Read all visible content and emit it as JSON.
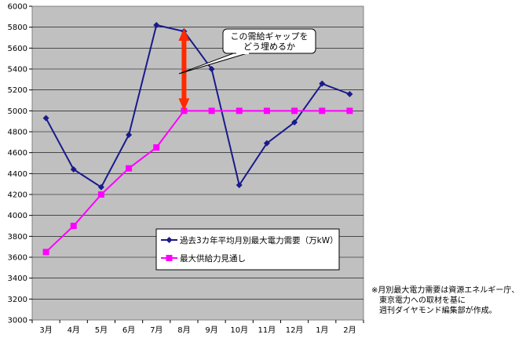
{
  "chart_data": {
    "type": "line",
    "categories": [
      "3月",
      "4月",
      "5月",
      "6月",
      "7月",
      "8月",
      "9月",
      "10月",
      "11月",
      "12月",
      "1月",
      "2月"
    ],
    "ylim": [
      3000,
      6000
    ],
    "yticks": [
      3000,
      3200,
      3400,
      3600,
      3800,
      4000,
      4200,
      4400,
      4600,
      4800,
      5000,
      5200,
      5400,
      5600,
      5800,
      6000
    ],
    "grid": true,
    "legend_position": "bottom-center",
    "series": [
      {
        "name": "過去3カ年平均月別最大電力需要（万kW）",
        "color": "#1a1a8c",
        "marker": "diamond",
        "values": [
          4930,
          4440,
          4270,
          4770,
          5820,
          5760,
          5400,
          4290,
          4690,
          4890,
          5260,
          5160
        ]
      },
      {
        "name": "最大供給力見通し",
        "color": "#ff00ff",
        "marker": "square",
        "values": [
          3650,
          3900,
          4200,
          4450,
          4650,
          5000,
          5000,
          5000,
          5000,
          5000,
          5000,
          5000
        ]
      }
    ],
    "annotation": {
      "lines": [
        "この需給ギャップを",
        "どう埋めるか"
      ],
      "arrow_color": "#ff2a00",
      "arrow_category": 5.5,
      "arrow_from": 5000,
      "arrow_to": 5790
    },
    "plot_background": "#c0c0c0"
  },
  "footnote": {
    "lines": [
      "※月別最大電力需要は資源エネルギー庁、",
      "　東京電力への取材を基に",
      "　週刊ダイヤモンド編集部が作成。"
    ]
  }
}
